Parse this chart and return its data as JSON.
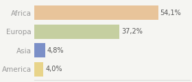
{
  "categories": [
    "Africa",
    "Europa",
    "Asia",
    "America"
  ],
  "values": [
    54.1,
    37.2,
    4.8,
    4.0
  ],
  "labels": [
    "54,1%",
    "37,2%",
    "4,8%",
    "4,0%"
  ],
  "bar_colors": [
    "#e8c49a",
    "#c5cfa0",
    "#7b8fc7",
    "#e8d48a"
  ],
  "background_color": "#f5f5f2",
  "text_color": "#999999",
  "label_color": "#555555",
  "grid_color": "#dddddd",
  "figsize": [
    2.8,
    1.2
  ],
  "dpi": 100,
  "xlim": [
    0,
    68
  ]
}
